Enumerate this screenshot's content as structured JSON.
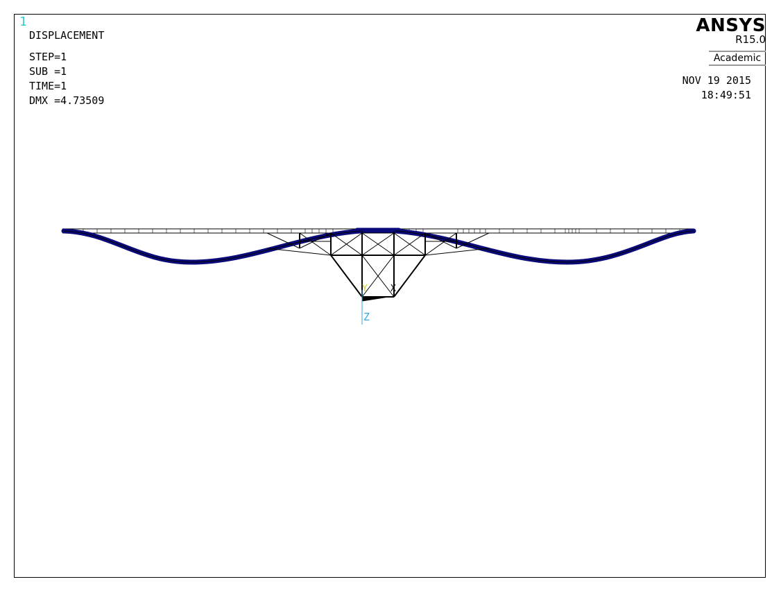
{
  "window_number": "1",
  "title": "DISPLACEMENT",
  "step": "STEP=1",
  "sub": "SUB =1",
  "time": "TIME=1",
  "dmx": "DMX =4.73509",
  "brand": "ANSYS",
  "release": "R15.0",
  "license": "Academic",
  "date": "NOV 19 2015",
  "clock": "18:49:51",
  "triad": {
    "y_label": "Y",
    "x_label": "X",
    "z_label": "Z"
  },
  "colors": {
    "deformed": "#0a0a7a",
    "undeformed": "#000000",
    "triad_z": "#33aadd",
    "triad_y": "#cccc33",
    "window_number": "#33cccc"
  }
}
